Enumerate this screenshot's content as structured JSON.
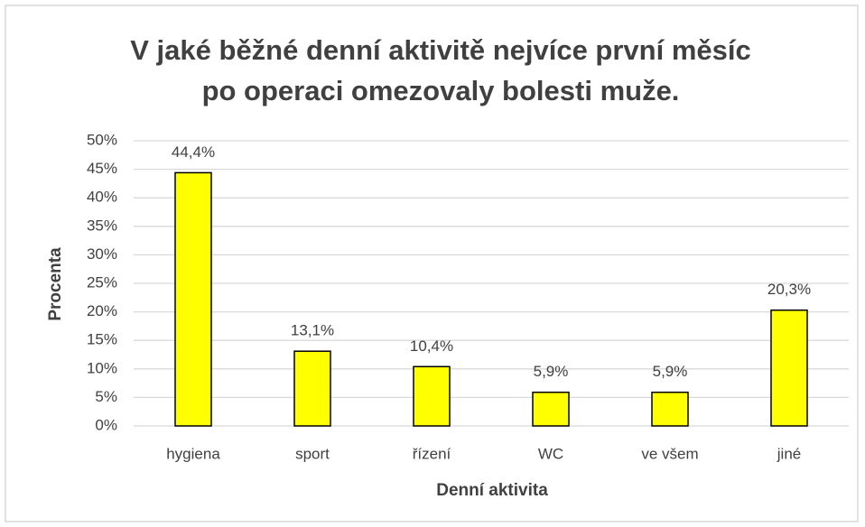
{
  "chart_data": {
    "type": "bar",
    "title": [
      "V jaké běžné denní aktivitě nejvíce první měsíc",
      "po operaci omezovaly bolesti muže."
    ],
    "x_label": "Denní aktivita",
    "y_label": "Procenta",
    "categories": [
      "hygiena",
      "sport",
      "řízení",
      "WC",
      "ve všem",
      "jiné"
    ],
    "values": [
      44.4,
      13.1,
      10.4,
      5.9,
      5.9,
      20.3
    ],
    "value_labels": [
      "44,4%",
      "13,1%",
      "10,4%",
      "5,9%",
      "5,9%",
      "20,3%"
    ],
    "color": "#ffff00",
    "ylim": [
      0,
      50
    ],
    "yticks": [
      {
        "value": 0,
        "label": "0%"
      },
      {
        "value": 5,
        "label": "5%"
      },
      {
        "value": 10,
        "label": "10%"
      },
      {
        "value": 15,
        "label": "15%"
      },
      {
        "value": 20,
        "label": "20%"
      },
      {
        "value": 25,
        "label": "25%"
      },
      {
        "value": 30,
        "label": "30%"
      },
      {
        "value": 35,
        "label": "35%"
      },
      {
        "value": 40,
        "label": "40%"
      },
      {
        "value": 45,
        "label": "45%"
      },
      {
        "value": 50,
        "label": "50%"
      }
    ],
    "grid": true
  }
}
